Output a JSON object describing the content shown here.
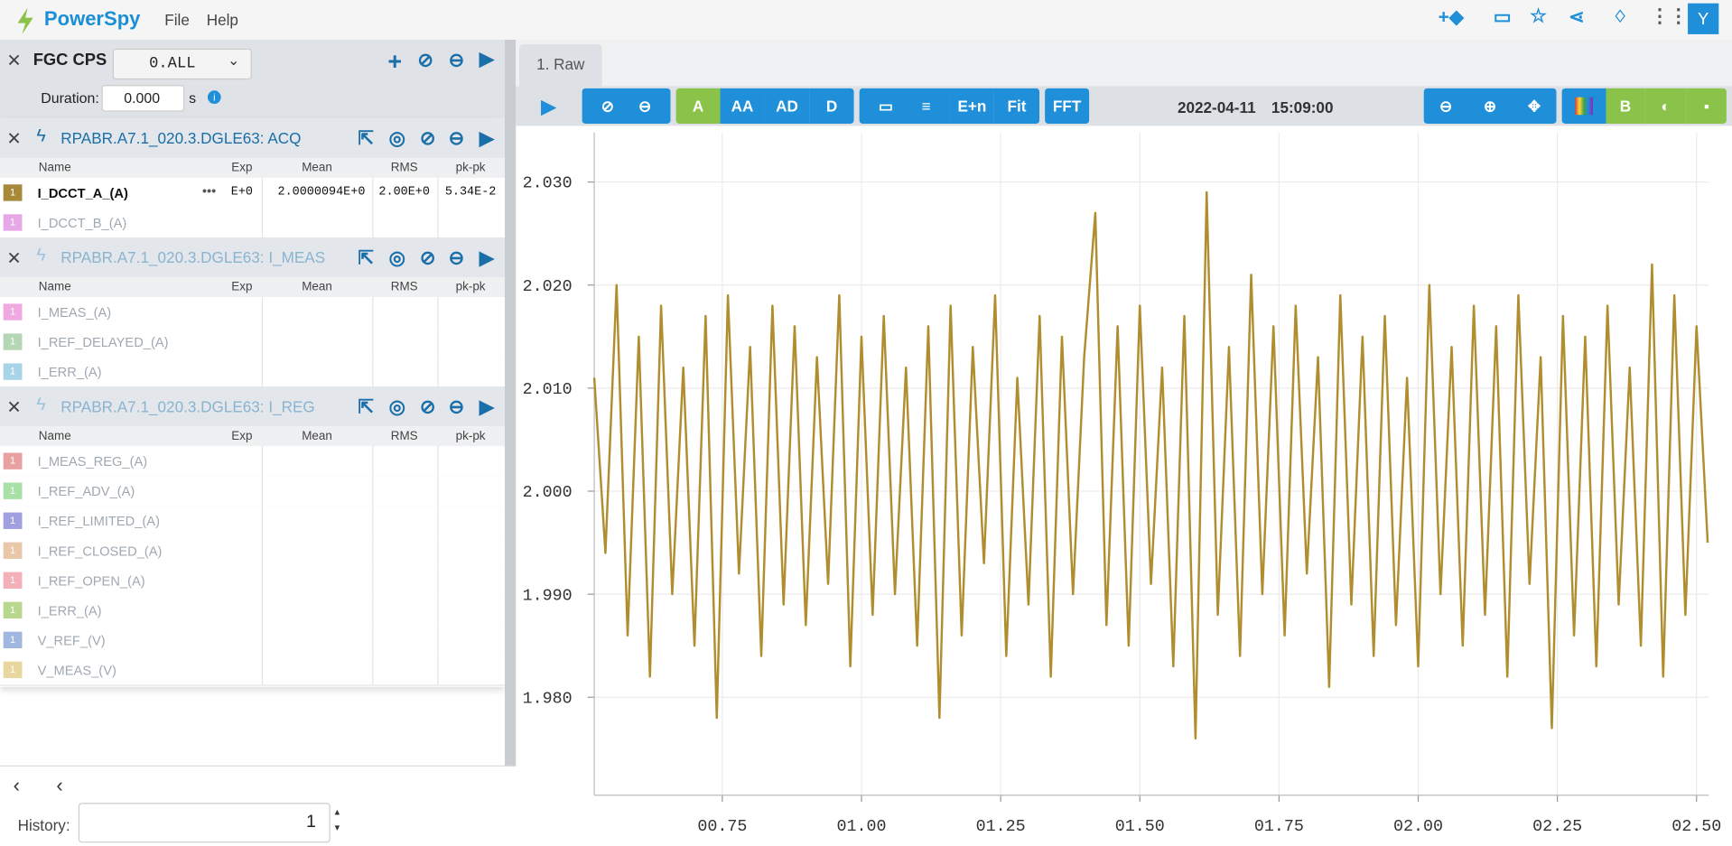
{
  "header": {
    "app": "PowerSpy",
    "menu": [
      "File",
      "Help"
    ],
    "avatar": "Y"
  },
  "panel": {
    "device": "FGC CPS",
    "selector": "0.ALL",
    "duration_label": "Duration:",
    "duration": "0.000",
    "duration_unit": "s",
    "columns": [
      "Name",
      "Exp",
      "Mean",
      "RMS",
      "pk-pk"
    ],
    "groups": [
      {
        "title": "RPABR.A7.1_020.3.DGLE63: ACQ",
        "active": true,
        "rows": [
          {
            "badge": "1",
            "color": "#a8893a",
            "name": "I_DCCT_A_(A)",
            "exp": "E+0",
            "mean": "2.0000094E+0",
            "rms": "2.00E+0",
            "pkpk": "5.34E-2"
          },
          {
            "badge": "1",
            "color": "#e7a8e7",
            "name": "I_DCCT_B_(A)"
          }
        ]
      },
      {
        "title": "RPABR.A7.1_020.3.DGLE63: I_MEAS",
        "active": false,
        "rows": [
          {
            "badge": "1",
            "color": "#f0a8e0",
            "name": "I_MEAS_(A)"
          },
          {
            "badge": "1",
            "color": "#b5d6b5",
            "name": "I_REF_DELAYED_(A)"
          },
          {
            "badge": "1",
            "color": "#a8d4e8",
            "name": "I_ERR_(A)"
          }
        ]
      },
      {
        "title": "RPABR.A7.1_020.3.DGLE63: I_REG",
        "active": false,
        "rows": [
          {
            "badge": "1",
            "color": "#e8a0a0",
            "name": "I_MEAS_REG_(A)"
          },
          {
            "badge": "1",
            "color": "#a8e0a8",
            "name": "I_REF_ADV_(A)"
          },
          {
            "badge": "1",
            "color": "#a0a0e0",
            "name": "I_REF_LIMITED_(A)"
          },
          {
            "badge": "1",
            "color": "#e8c8a8",
            "name": "I_REF_CLOSED_(A)"
          },
          {
            "badge": "1",
            "color": "#f4b0b8",
            "name": "I_REF_OPEN_(A)"
          },
          {
            "badge": "1",
            "color": "#b8d890",
            "name": "I_ERR_(A)"
          },
          {
            "badge": "1",
            "color": "#a0b8e0",
            "name": "V_REF_(V)"
          },
          {
            "badge": "1",
            "color": "#e8d8a0",
            "name": "V_MEAS_(V)"
          }
        ]
      }
    ]
  },
  "footer": {
    "history_label": "History:",
    "history": "1"
  },
  "tab": "1. Raw",
  "toolbar": {
    "modes": [
      "A",
      "AA",
      "AD",
      "D"
    ],
    "exp": "E+n",
    "fit": "Fit",
    "fft": "FFT",
    "b": "B",
    "date": "2022-04-11",
    "time": "15:09:00"
  },
  "chart_data": {
    "type": "line",
    "x": [
      0.52,
      0.54,
      0.56,
      0.58,
      0.6,
      0.62,
      0.64,
      0.66,
      0.68,
      0.7,
      0.72,
      0.74,
      0.76,
      0.78,
      0.8,
      0.82,
      0.84,
      0.86,
      0.88,
      0.9,
      0.92,
      0.94,
      0.96,
      0.98,
      1.0,
      1.02,
      1.04,
      1.06,
      1.08,
      1.1,
      1.12,
      1.14,
      1.16,
      1.18,
      1.2,
      1.22,
      1.24,
      1.26,
      1.28,
      1.3,
      1.32,
      1.34,
      1.36,
      1.38,
      1.4,
      1.42,
      1.44,
      1.46,
      1.48,
      1.5,
      1.52,
      1.54,
      1.56,
      1.58,
      1.6,
      1.62,
      1.64,
      1.66,
      1.68,
      1.7,
      1.72,
      1.74,
      1.76,
      1.78,
      1.8,
      1.82,
      1.84,
      1.86,
      1.88,
      1.9,
      1.92,
      1.94,
      1.96,
      1.98,
      2.0,
      2.02,
      2.04,
      2.06,
      2.08,
      2.1,
      2.12,
      2.14,
      2.16,
      2.18,
      2.2,
      2.22,
      2.24,
      2.26,
      2.28,
      2.3,
      2.32,
      2.34,
      2.36,
      2.38,
      2.4,
      2.42,
      2.44,
      2.46,
      2.48,
      2.5,
      2.52
    ],
    "series": [
      {
        "color": "#b08d2e",
        "values": [
          2.011,
          1.994,
          2.02,
          1.986,
          2.015,
          1.982,
          2.018,
          1.99,
          2.012,
          1.985,
          2.017,
          1.978,
          2.019,
          1.992,
          2.014,
          1.984,
          2.018,
          1.989,
          2.016,
          1.987,
          2.013,
          1.991,
          2.019,
          1.983,
          2.015,
          1.988,
          2.017,
          1.99,
          2.012,
          1.985,
          2.016,
          1.978,
          2.018,
          1.986,
          2.014,
          1.993,
          2.019,
          1.984,
          2.011,
          1.989,
          2.017,
          1.982,
          2.015,
          1.99,
          2.013,
          2.027,
          1.987,
          2.016,
          1.985,
          2.018,
          1.991,
          2.012,
          1.983,
          2.017,
          1.976,
          2.029,
          1.988,
          2.014,
          1.984,
          2.021,
          1.99,
          2.016,
          1.986,
          2.018,
          1.992,
          2.013,
          1.981,
          2.019,
          1.989,
          2.015,
          1.984,
          2.017,
          1.987,
          2.011,
          1.983,
          2.02,
          1.99,
          2.014,
          1.985,
          2.018,
          1.988,
          2.016,
          1.982,
          2.019,
          1.991,
          2.013,
          1.977,
          2.017,
          1.986,
          2.015,
          1.983,
          2.018,
          1.989,
          2.012,
          1.985,
          2.022,
          1.982,
          2.019,
          1.988,
          2.016,
          1.995
        ]
      }
    ],
    "xlim": [
      0.52,
      2.522
    ],
    "xticks": [
      {
        "value": 0.75,
        "label": "00.75"
      },
      {
        "value": 1.0,
        "label": "01.00"
      },
      {
        "value": 1.25,
        "label": "01.25"
      },
      {
        "value": 1.5,
        "label": "01.50"
      },
      {
        "value": 1.75,
        "label": "01.75"
      },
      {
        "value": 2.0,
        "label": "02.00"
      },
      {
        "value": 2.25,
        "label": "02.25"
      },
      {
        "value": 2.5,
        "label": "02.50"
      }
    ],
    "ylim": [
      1.9705,
      2.0348
    ],
    "yticks": [
      {
        "value": 1.98,
        "label": "1.980"
      },
      {
        "value": 1.99,
        "label": "1.990"
      },
      {
        "value": 2.0,
        "label": "2.000"
      },
      {
        "value": 2.01,
        "label": "2.010"
      },
      {
        "value": 2.02,
        "label": "2.020"
      },
      {
        "value": 2.03,
        "label": "2.030"
      }
    ],
    "grid": true
  }
}
